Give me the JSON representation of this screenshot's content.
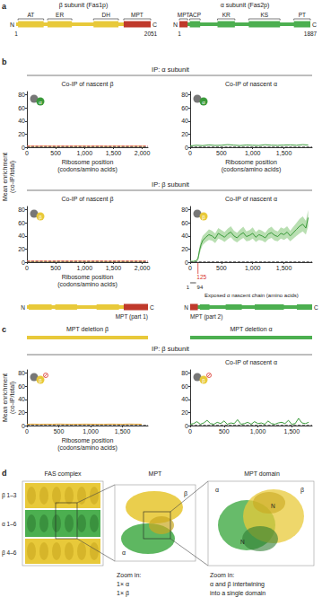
{
  "chart_data": [
    {
      "type": "line",
      "title": "Co-IP of nascent β",
      "xlabel": "Ribosome position (codons/amino acids)",
      "icon_label": "α",
      "icon_color": "#3a9a3a",
      "grid": false,
      "x": [
        0,
        100,
        200,
        300,
        400,
        500,
        600,
        700,
        800,
        900,
        1000,
        1100,
        1200,
        1300,
        1400,
        1500,
        1600,
        1700,
        1800,
        1900,
        2000,
        2051
      ],
      "values": [
        1.6,
        1.5,
        1.4,
        1.7,
        1.5,
        1.3,
        1.6,
        1.4,
        1.5,
        1.7,
        1.5,
        1.4,
        1.6,
        1.5,
        1.3,
        1.5,
        1.6,
        1.4,
        1.5,
        1.6,
        1.5,
        1.4
      ],
      "color": "#e0a030",
      "xlim": [
        0,
        2100
      ],
      "xticks": [
        0,
        500,
        1000,
        1500,
        2000
      ],
      "ylim": [
        0,
        85
      ],
      "yticks": [
        0,
        20,
        40,
        60,
        80
      ],
      "hlines": [
        {
          "value": 1,
          "color": "#555555",
          "line_style": "dashed"
        },
        {
          "value": 2.5,
          "color": "#d9534f",
          "line_style": "dashed"
        }
      ]
    },
    {
      "type": "line",
      "title": "Co-IP of nascent α",
      "xlabel": "Ribosome position (codons/amino acids)",
      "icon_label": "α",
      "icon_color": "#3a9a3a",
      "grid": false,
      "x": [
        0,
        100,
        200,
        300,
        400,
        500,
        600,
        700,
        800,
        900,
        1000,
        1100,
        1200,
        1300,
        1400,
        1500,
        1600,
        1700,
        1800,
        1887
      ],
      "values": [
        2,
        3,
        2.5,
        3.5,
        2.8,
        3,
        4,
        3.2,
        2.6,
        3.4,
        3,
        2.7,
        3.8,
        3.1,
        2.9,
        3.3,
        3.6,
        3,
        3.9,
        3.4
      ],
      "color": "#3a9a3a",
      "xlim": [
        0,
        1950
      ],
      "xticks": [
        0,
        500,
        1000,
        1500
      ],
      "ylim": [
        0,
        85
      ],
      "yticks": [
        0,
        20,
        40,
        60,
        80
      ],
      "hlines": [
        {
          "value": 1,
          "color": "#555555",
          "line_style": "dashed"
        }
      ]
    },
    {
      "type": "line",
      "title": "Co-IP of nascent β",
      "xlabel": "Ribosome position (codons/amino acids)",
      "icon_label": "β",
      "icon_color": "#e8c93a",
      "grid": false,
      "x": [
        0,
        100,
        200,
        300,
        400,
        500,
        600,
        700,
        800,
        900,
        1000,
        1100,
        1200,
        1300,
        1400,
        1500,
        1600,
        1700,
        1800,
        1900,
        2000,
        2051
      ],
      "values": [
        1.2,
        1.1,
        1.3,
        1.2,
        1.0,
        1.2,
        1.3,
        1.1,
        1.2,
        1.4,
        1.2,
        1.1,
        1.3,
        1.2,
        1.0,
        1.2,
        1.3,
        1.1,
        1.2,
        1.3,
        1.2,
        1.1
      ],
      "color": "#e0a030",
      "xlim": [
        0,
        2100
      ],
      "xticks": [
        0,
        500,
        1000,
        1500,
        2000
      ],
      "ylim": [
        0,
        85
      ],
      "yticks": [
        0,
        20,
        40,
        60,
        80
      ],
      "hlines": [
        {
          "value": 1,
          "color": "#555555",
          "line_style": "dashed"
        },
        {
          "value": 2.5,
          "color": "#d9534f",
          "line_style": "dashed"
        }
      ]
    },
    {
      "type": "line",
      "title": "Co-IP of nascent α",
      "icon_label": "β",
      "icon_color": "#e8c93a",
      "grid": false,
      "x": [
        0,
        50,
        94,
        125,
        150,
        175,
        200,
        250,
        300,
        350,
        400,
        450,
        500,
        550,
        600,
        650,
        700,
        750,
        800,
        850,
        900,
        950,
        1000,
        1050,
        1100,
        1150,
        1200,
        1250,
        1300,
        1350,
        1400,
        1450,
        1500,
        1550,
        1600,
        1650,
        1700,
        1750,
        1800,
        1850,
        1887
      ],
      "values": [
        1,
        1,
        2,
        5,
        18,
        27,
        33,
        38,
        42,
        40,
        36,
        44,
        41,
        38,
        43,
        46,
        40,
        37,
        42,
        45,
        39,
        41,
        44,
        38,
        42,
        40,
        37,
        43,
        45,
        41,
        39,
        44,
        42,
        46,
        40,
        45,
        50,
        55,
        58,
        52,
        68
      ],
      "band": {
        "color": "#b9dfb2",
        "lower": [
          0,
          0,
          1,
          2,
          12,
          20,
          26,
          31,
          34,
          33,
          29,
          36,
          34,
          31,
          35,
          38,
          33,
          30,
          34,
          37,
          32,
          33,
          36,
          31,
          34,
          33,
          30,
          35,
          37,
          33,
          32,
          36,
          34,
          37,
          32,
          36,
          40,
          44,
          47,
          42,
          55
        ],
        "upper": [
          2,
          2,
          3,
          9,
          24,
          34,
          40,
          45,
          50,
          48,
          44,
          52,
          49,
          46,
          51,
          55,
          48,
          45,
          50,
          54,
          47,
          49,
          53,
          46,
          50,
          48,
          45,
          51,
          54,
          49,
          47,
          53,
          51,
          55,
          48,
          54,
          60,
          66,
          70,
          63,
          80
        ]
      },
      "color": "#3a9a3a",
      "xlim": [
        0,
        1950
      ],
      "xticks": [
        0,
        500,
        1000,
        1500
      ],
      "ylim": [
        0,
        85
      ],
      "yticks": [
        0,
        20,
        40,
        60,
        80
      ],
      "hlines": [
        {
          "value": 1,
          "color": "#555555",
          "line_style": "dashed"
        }
      ]
    },
    {
      "type": "line",
      "xlabel": "Ribosome position (codons/amino acids)",
      "icon_label": "β",
      "icon_color": "#e8c93a",
      "grid": false,
      "x": [
        0,
        100,
        200,
        300,
        400,
        500,
        600,
        700,
        800,
        900,
        1000,
        1100,
        1200,
        1300,
        1400,
        1500,
        1600,
        1700,
        1800
      ],
      "values": [
        2,
        2.2,
        1.9,
        2.1,
        2,
        2.3,
        2.1,
        1.9,
        2,
        2.2,
        2.1,
        2,
        1.9,
        2.2,
        2.1,
        2,
        2.3,
        2.1,
        2
      ],
      "color": "#e0a030",
      "xlim": [
        0,
        1900
      ],
      "xticks": [
        0,
        500,
        1000,
        1500
      ],
      "ylim": [
        0,
        85
      ],
      "yticks": [
        0,
        20,
        40,
        60,
        80
      ],
      "hlines": [
        {
          "value": 1,
          "color": "#555555",
          "line_style": "dashed"
        }
      ]
    },
    {
      "type": "line",
      "title": "Co-IP of nascent α",
      "icon_label": "β",
      "icon_color": "#e8c93a",
      "grid": false,
      "x": [
        0,
        50,
        100,
        150,
        200,
        250,
        300,
        350,
        400,
        450,
        500,
        550,
        600,
        650,
        700,
        750,
        800,
        850,
        900,
        950,
        1000,
        1050,
        1100,
        1150,
        1200,
        1250,
        1300,
        1350,
        1400,
        1450,
        1500,
        1550,
        1600,
        1650,
        1700,
        1750
      ],
      "values": [
        2,
        3,
        6,
        2,
        4,
        8,
        3,
        2,
        5,
        3,
        7,
        2,
        4,
        3,
        9,
        2,
        3,
        5,
        2,
        6,
        3,
        4,
        2,
        7,
        3,
        2,
        4,
        5,
        3,
        8,
        2,
        3,
        11,
        4,
        3,
        5
      ],
      "color": "#3a9a3a",
      "xlim": [
        0,
        1800
      ],
      "xticks": [
        0,
        500,
        1000,
        1500
      ],
      "ylim": [
        0,
        85
      ],
      "yticks": [
        0,
        20,
        40,
        60,
        80
      ],
      "hlines": [
        {
          "value": 1,
          "color": "#555555",
          "line_style": "dashed"
        }
      ]
    }
  ],
  "panels": {
    "a": {
      "letter": "a",
      "subunits": [
        {
          "title": "β subunit (Fas1p)",
          "start_label": "N",
          "end_label": "C",
          "first": 1,
          "length": 2051,
          "color": "#e8c93a",
          "domains": [
            {
              "name": "AT",
              "start": 30,
              "end": 420
            },
            {
              "name": "ER",
              "start": 480,
              "end": 850
            },
            {
              "name": "DH",
              "start": 1180,
              "end": 1560
            },
            {
              "name": "MPT",
              "start": 1640,
              "end": 2051,
              "color": "#c0392b"
            }
          ]
        },
        {
          "title": "α subunit (Fas2p)",
          "start_label": "N",
          "end_label": "C",
          "first": 1,
          "length": 1887,
          "color": "#4caf50",
          "domains": [
            {
              "name": "MPT",
              "start": 1,
              "end": 120,
              "color": "#c0392b"
            },
            {
              "name": "ACP",
              "start": 150,
              "end": 300
            },
            {
              "name": "KR",
              "start": 550,
              "end": 800
            },
            {
              "name": "KS",
              "start": 1000,
              "end": 1450
            },
            {
              "name": "PT",
              "start": 1650,
              "end": 1887
            }
          ]
        }
      ]
    },
    "b": {
      "letter": "b",
      "ylabel": "Mean enrichment (co-IP/total)",
      "headers": [
        "IP: α subunit",
        "IP: β subunit"
      ],
      "annotation": {
        "mark": 125,
        "mark_color": "#d9342b",
        "start": 1,
        "end": 94,
        "text": "Exposed α nascent chain (amino acids)"
      },
      "bars": [
        {
          "segment": [
            1640,
            2051
          ],
          "label": "MPT (part 1)"
        },
        {
          "segment": [
            1,
            120
          ],
          "label": "MPT (part 2)"
        }
      ]
    },
    "c": {
      "letter": "c",
      "ylabel": "Mean enrichment (co-IP/total)",
      "titles": [
        "MPT deletion β",
        "MPT deletion α"
      ],
      "header": "IP: β subunit"
    },
    "d": {
      "letter": "d",
      "titles": [
        "FAS complex",
        "MPT",
        "MPT domain"
      ],
      "side_labels": [
        "β 1–3",
        "α 1–6",
        "β 4–6"
      ],
      "mpt_labels": [
        "β",
        "α"
      ],
      "domain_labels": [
        "β",
        "α",
        "N",
        "N"
      ],
      "zoom1": [
        "Zoom in:",
        "1× α",
        "1× β"
      ],
      "zoom2": [
        "Zoom in:",
        "α and β intertwining",
        "into a single domain"
      ]
    }
  }
}
